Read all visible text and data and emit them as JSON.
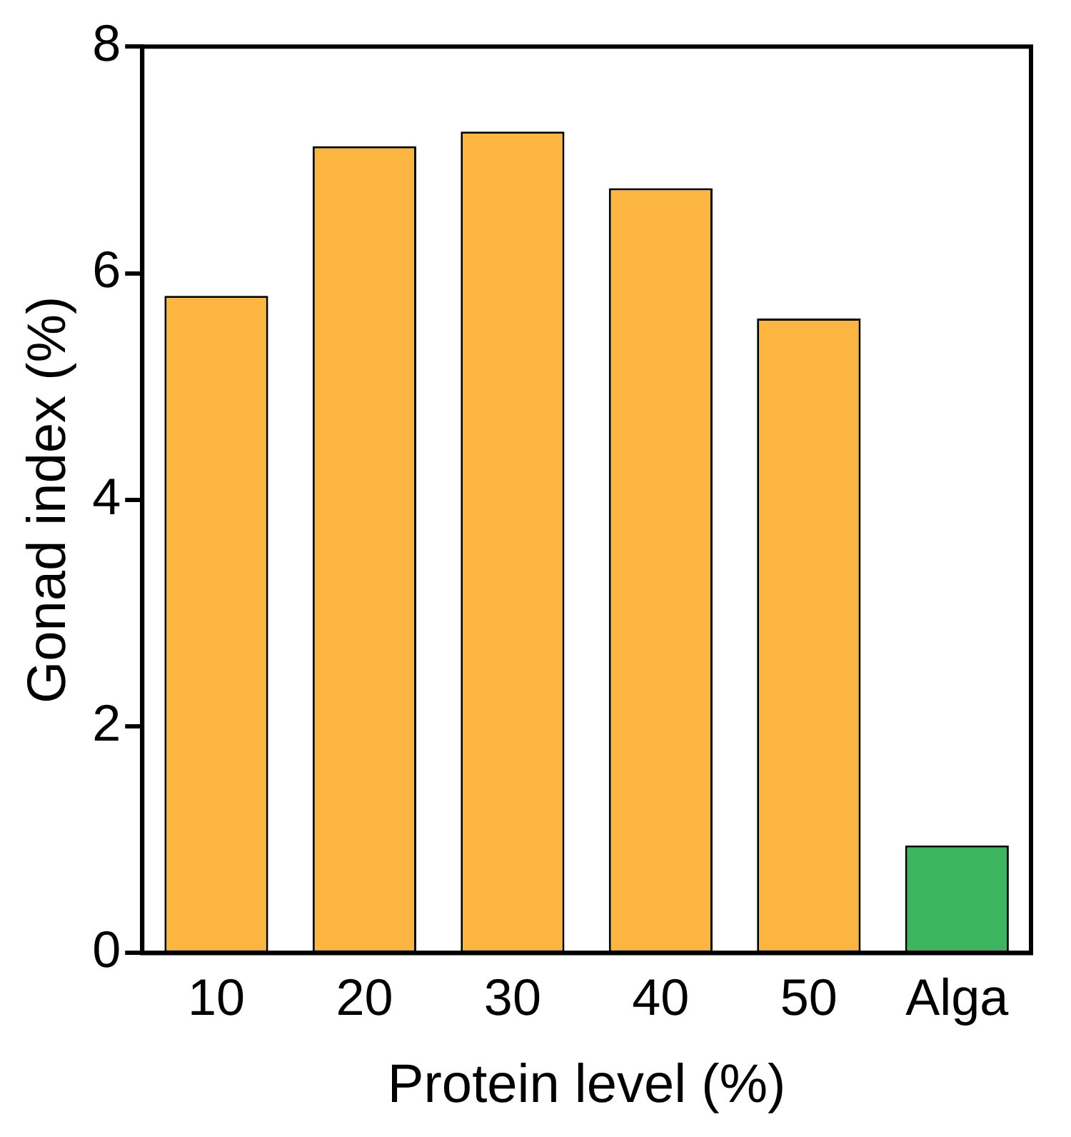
{
  "chart_data": {
    "type": "bar",
    "xlabel": "Protein level (%)",
    "ylabel": "Gonad index (%)",
    "categories": [
      "10",
      "20",
      "30",
      "40",
      "50",
      "Alga"
    ],
    "values": [
      5.8,
      7.12,
      7.25,
      6.75,
      5.6,
      0.95
    ],
    "colors": [
      "#fbb540",
      "#fbb540",
      "#fbb540",
      "#fbb540",
      "#fbb540",
      "#3db55e"
    ],
    "ylim": [
      0,
      8
    ],
    "yticks": [
      0,
      2,
      4,
      6,
      8
    ],
    "grid": false,
    "legend": false
  }
}
